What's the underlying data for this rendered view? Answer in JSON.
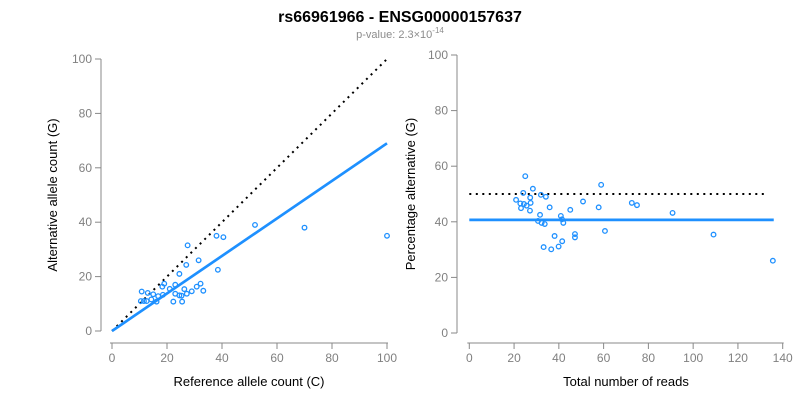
{
  "header": {
    "title": "rs66961966 - ENSG00000157637",
    "subtitle_base": "p-value: 2.3×10",
    "subtitle_exponent": "-14"
  },
  "colors": {
    "accent_blue": "#1E90FF",
    "dotted_line_black": "#000000",
    "axis_gray": "#888888",
    "tick_label_gray": "#808080",
    "subtitle_gray": "#8c8c8c"
  },
  "chart_data": [
    {
      "type": "scatter",
      "xlabel": "Reference allele count (C)",
      "ylabel": "Alternative allele count (G)",
      "xlim": [
        0,
        100
      ],
      "ylim": [
        0,
        100
      ],
      "xticks": [
        0,
        20,
        40,
        60,
        80,
        100
      ],
      "yticks": [
        0,
        20,
        40,
        60,
        80,
        100
      ],
      "grid": false,
      "points": [
        [
          10.5,
          11
        ],
        [
          11.6,
          11
        ],
        [
          12.6,
          11
        ],
        [
          10.8,
          14.5
        ],
        [
          13,
          14
        ],
        [
          14.3,
          11.6
        ],
        [
          15,
          13.5
        ],
        [
          16.2,
          10.8
        ],
        [
          16.8,
          12.8
        ],
        [
          18.3,
          16.3
        ],
        [
          18.5,
          13.3
        ],
        [
          19,
          17.4
        ],
        [
          21,
          15.5
        ],
        [
          22.3,
          10.8
        ],
        [
          23,
          17
        ],
        [
          23,
          13.7
        ],
        [
          24.5,
          13.1
        ],
        [
          24.5,
          21
        ],
        [
          25.5,
          10.8
        ],
        [
          25.3,
          13
        ],
        [
          26.3,
          15.4
        ],
        [
          27,
          24.3
        ],
        [
          27.2,
          13.7
        ],
        [
          27.5,
          31.5
        ],
        [
          29,
          14.6
        ],
        [
          30.8,
          16.3
        ],
        [
          31.5,
          26
        ],
        [
          32.2,
          17.4
        ],
        [
          33.2,
          14.8
        ],
        [
          38,
          35
        ],
        [
          38.5,
          22.5
        ],
        [
          40.5,
          34.5
        ],
        [
          52,
          39
        ],
        [
          70,
          38
        ],
        [
          100,
          35
        ]
      ],
      "lines": [
        {
          "name": "identity-line",
          "style": "dotted",
          "color": "#000000",
          "x": [
            0,
            100
          ],
          "y": [
            0,
            100
          ]
        },
        {
          "name": "fit-line",
          "style": "solid",
          "color": "#1E90FF",
          "x": [
            0,
            100
          ],
          "y": [
            0,
            69
          ]
        }
      ]
    },
    {
      "type": "scatter",
      "xlabel": "Total number of reads",
      "ylabel": "Percentage alternative (G)",
      "xlim": [
        0,
        140
      ],
      "ylim": [
        0,
        100
      ],
      "xticks": [
        0,
        20,
        40,
        60,
        80,
        100,
        120,
        140
      ],
      "yticks": [
        0,
        20,
        40,
        60,
        80,
        100
      ],
      "grid": false,
      "points": [
        [
          25,
          56.4
        ],
        [
          28.4,
          51.9
        ],
        [
          24.1,
          50.4
        ],
        [
          32,
          49.7
        ],
        [
          20.9,
          47.9
        ],
        [
          27.2,
          48.7
        ],
        [
          22.8,
          46.6
        ],
        [
          24.4,
          46.4
        ],
        [
          25.6,
          45.8
        ],
        [
          27.4,
          46.8
        ],
        [
          23.1,
          44.9
        ],
        [
          27.1,
          44
        ],
        [
          34.2,
          49
        ],
        [
          35.9,
          45.2
        ],
        [
          31.6,
          42.5
        ],
        [
          30.7,
          40.3
        ],
        [
          32.3,
          39.6
        ],
        [
          33.7,
          39.2
        ],
        [
          40.9,
          42.1
        ],
        [
          41.4,
          40.9
        ],
        [
          42,
          39.6
        ],
        [
          45.1,
          44.3
        ],
        [
          50.8,
          47.3
        ],
        [
          57.8,
          45.2
        ],
        [
          58.9,
          53.3
        ],
        [
          60.6,
          36.7
        ],
        [
          47.2,
          35.6
        ],
        [
          47.2,
          34.4
        ],
        [
          38.1,
          34.9
        ],
        [
          41.5,
          33
        ],
        [
          33.2,
          30.9
        ],
        [
          36.6,
          30.1
        ],
        [
          39.9,
          31.1
        ],
        [
          72.6,
          46.8
        ],
        [
          74.9,
          46
        ],
        [
          90.8,
          43.2
        ],
        [
          109.1,
          35.4
        ],
        [
          135.6,
          26
        ]
      ],
      "lines": [
        {
          "name": "expected-50pct-line",
          "style": "dotted",
          "color": "#000000",
          "x": [
            0,
            133
          ],
          "y": [
            50,
            50
          ]
        },
        {
          "name": "fit-line",
          "style": "solid",
          "color": "#1E90FF",
          "x": [
            0,
            136
          ],
          "y": [
            40.7,
            40.7
          ]
        }
      ]
    }
  ]
}
